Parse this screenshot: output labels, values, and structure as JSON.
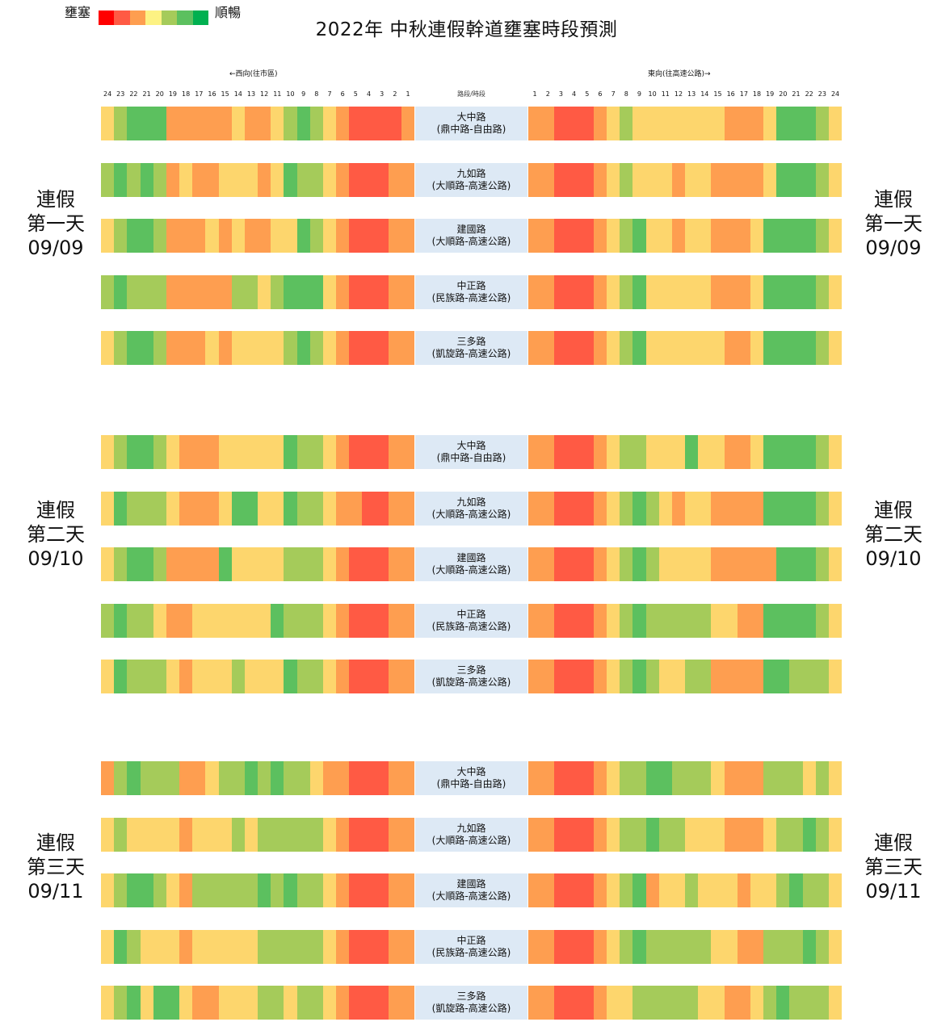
{
  "legend": {
    "left_label": "壅塞",
    "right_label": "順暢",
    "colors": [
      "#ff0000",
      "#ff5a44",
      "#fe9e50",
      "#fdf283",
      "#a5cb5a",
      "#5cc05f",
      "#00b050"
    ]
  },
  "title": "2022年  中秋連假幹道壅塞時段預測",
  "header": {
    "west_label": "←西向(往市區)",
    "east_label": "東向(往高速公路)→",
    "middle_label": "路段/時段",
    "west_hours": [
      "24",
      "23",
      "22",
      "21",
      "20",
      "19",
      "18",
      "17",
      "16",
      "15",
      "14",
      "13",
      "12",
      "11",
      "10",
      "9",
      "8",
      "7",
      "6",
      "5",
      "4",
      "3",
      "2",
      "1"
    ],
    "east_hours": [
      "1",
      "2",
      "3",
      "4",
      "5",
      "6",
      "7",
      "8",
      "9",
      "10",
      "11",
      "12",
      "13",
      "14",
      "15",
      "16",
      "17",
      "18",
      "19",
      "20",
      "21",
      "22",
      "23",
      "24"
    ]
  },
  "chart_data": {
    "type": "heatmap",
    "title": "2022年  中秋連假幹道壅塞時段預測",
    "scale": [
      "壅塞",
      "順暢"
    ],
    "level_note": "1 = 順暢 ... 7 = 壅塞",
    "days": [
      {
        "label_line1": "連假",
        "label_line2": "第一天",
        "date": "09/09",
        "roads": [
          {
            "name": "大中路",
            "section": "(鼎中路-自由路)",
            "west": [
              5,
              4,
              3,
              3,
              3,
              6,
              6,
              6,
              6,
              6,
              5,
              6,
              6,
              5,
              4,
              3,
              4,
              5,
              6,
              7,
              7,
              7,
              7,
              6
            ],
            "east": [
              6,
              6,
              7,
              7,
              7,
              6,
              5,
              4,
              5,
              5,
              5,
              5,
              5,
              5,
              5,
              6,
              6,
              6,
              5,
              3,
              3,
              3,
              4,
              5
            ]
          },
          {
            "name": "九如路",
            "section": "(大順路-高速公路)",
            "west": [
              4,
              3,
              4,
              3,
              4,
              6,
              5,
              6,
              6,
              5,
              5,
              5,
              6,
              5,
              3,
              4,
              4,
              5,
              6,
              7,
              7,
              7,
              6,
              6
            ],
            "east": [
              6,
              6,
              7,
              7,
              7,
              6,
              5,
              4,
              5,
              5,
              5,
              6,
              5,
              5,
              6,
              6,
              6,
              6,
              5,
              3,
              3,
              3,
              4,
              5
            ]
          },
          {
            "name": "建國路",
            "section": "(大順路-高速公路)",
            "west": [
              5,
              4,
              3,
              3,
              4,
              6,
              6,
              6,
              5,
              6,
              5,
              6,
              6,
              5,
              5,
              3,
              4,
              5,
              6,
              7,
              7,
              7,
              6,
              6
            ],
            "east": [
              6,
              6,
              7,
              7,
              7,
              6,
              5,
              4,
              3,
              5,
              5,
              6,
              5,
              5,
              6,
              6,
              6,
              5,
              3,
              3,
              3,
              3,
              4,
              5
            ]
          },
          {
            "name": "中正路",
            "section": "(民族路-高速公路)",
            "west": [
              4,
              3,
              4,
              4,
              4,
              6,
              6,
              6,
              6,
              6,
              4,
              4,
              5,
              4,
              3,
              3,
              3,
              5,
              6,
              7,
              7,
              7,
              6,
              6
            ],
            "east": [
              6,
              6,
              7,
              7,
              7,
              6,
              5,
              4,
              3,
              5,
              5,
              5,
              5,
              5,
              6,
              6,
              6,
              5,
              3,
              3,
              3,
              3,
              4,
              5
            ]
          },
          {
            "name": "三多路",
            "section": "(凱旋路-高速公路)",
            "west": [
              5,
              4,
              3,
              3,
              4,
              6,
              6,
              6,
              5,
              6,
              5,
              5,
              5,
              5,
              4,
              3,
              4,
              5,
              6,
              7,
              7,
              7,
              6,
              6
            ],
            "east": [
              6,
              6,
              7,
              7,
              7,
              6,
              5,
              4,
              3,
              5,
              5,
              5,
              5,
              5,
              5,
              6,
              6,
              5,
              3,
              3,
              3,
              3,
              4,
              5
            ]
          }
        ]
      },
      {
        "label_line1": "連假",
        "label_line2": "第二天",
        "date": "09/10",
        "roads": [
          {
            "name": "大中路",
            "section": "(鼎中路-自由路)",
            "west": [
              5,
              4,
              3,
              3,
              4,
              5,
              6,
              6,
              6,
              5,
              5,
              5,
              5,
              5,
              3,
              4,
              4,
              5,
              6,
              7,
              7,
              7,
              6,
              6
            ],
            "east": [
              6,
              6,
              7,
              7,
              7,
              6,
              5,
              4,
              4,
              5,
              5,
              5,
              3,
              5,
              5,
              6,
              6,
              5,
              3,
              3,
              3,
              3,
              4,
              5
            ]
          },
          {
            "name": "九如路",
            "section": "(大順路-高速公路)",
            "west": [
              5,
              3,
              4,
              4,
              4,
              5,
              6,
              6,
              6,
              5,
              3,
              3,
              5,
              5,
              3,
              4,
              4,
              5,
              6,
              6,
              7,
              7,
              6,
              6
            ],
            "east": [
              6,
              6,
              7,
              7,
              7,
              6,
              5,
              4,
              3,
              4,
              5,
              6,
              5,
              5,
              6,
              6,
              6,
              6,
              3,
              3,
              3,
              3,
              4,
              5
            ]
          },
          {
            "name": "建國路",
            "section": "(大順路-高速公路)",
            "west": [
              5,
              4,
              3,
              3,
              4,
              6,
              6,
              6,
              6,
              3,
              5,
              5,
              5,
              5,
              4,
              4,
              4,
              5,
              6,
              7,
              7,
              7,
              6,
              6
            ],
            "east": [
              6,
              6,
              7,
              7,
              7,
              6,
              5,
              4,
              3,
              4,
              5,
              5,
              5,
              5,
              6,
              6,
              6,
              6,
              6,
              3,
              3,
              3,
              4,
              5
            ]
          },
          {
            "name": "中正路",
            "section": "(民族路-高速公路)",
            "west": [
              4,
              3,
              4,
              4,
              5,
              6,
              6,
              5,
              5,
              5,
              5,
              5,
              5,
              3,
              4,
              4,
              4,
              5,
              6,
              7,
              7,
              7,
              6,
              6
            ],
            "east": [
              6,
              6,
              7,
              7,
              7,
              6,
              5,
              4,
              3,
              4,
              4,
              4,
              4,
              4,
              5,
              5,
              6,
              6,
              3,
              3,
              3,
              3,
              4,
              5
            ]
          },
          {
            "name": "三多路",
            "section": "(凱旋路-高速公路)",
            "west": [
              5,
              3,
              4,
              4,
              4,
              5,
              6,
              5,
              5,
              5,
              4,
              5,
              5,
              5,
              3,
              4,
              4,
              5,
              6,
              7,
              7,
              7,
              6,
              6
            ],
            "east": [
              6,
              6,
              7,
              7,
              7,
              6,
              5,
              4,
              3,
              4,
              5,
              5,
              4,
              4,
              6,
              6,
              6,
              6,
              3,
              3,
              4,
              4,
              4,
              5
            ]
          }
        ]
      },
      {
        "label_line1": "連假",
        "label_line2": "第三天",
        "date": "09/11",
        "roads": [
          {
            "name": "大中路",
            "section": "(鼎中路-自由路)",
            "west": [
              6,
              4,
              3,
              4,
              4,
              4,
              6,
              6,
              5,
              4,
              4,
              3,
              4,
              3,
              4,
              4,
              5,
              6,
              6,
              7,
              7,
              7,
              6,
              6
            ],
            "east": [
              6,
              6,
              7,
              7,
              7,
              6,
              5,
              4,
              4,
              3,
              3,
              4,
              4,
              4,
              5,
              6,
              6,
              6,
              4,
              4,
              4,
              5,
              4,
              5
            ]
          },
          {
            "name": "九如路",
            "section": "(大順路-高速公路)",
            "west": [
              5,
              4,
              5,
              5,
              5,
              5,
              6,
              5,
              5,
              5,
              4,
              5,
              4,
              4,
              4,
              4,
              4,
              5,
              6,
              7,
              7,
              7,
              6,
              6
            ],
            "east": [
              6,
              6,
              7,
              7,
              7,
              6,
              5,
              4,
              4,
              3,
              4,
              4,
              5,
              5,
              5,
              6,
              6,
              6,
              5,
              4,
              4,
              3,
              4,
              5
            ]
          },
          {
            "name": "建國路",
            "section": "(大順路-高速公路)",
            "west": [
              5,
              4,
              3,
              3,
              4,
              5,
              6,
              4,
              4,
              4,
              4,
              4,
              3,
              4,
              3,
              4,
              4,
              5,
              6,
              7,
              7,
              7,
              6,
              6
            ],
            "east": [
              6,
              6,
              7,
              7,
              7,
              6,
              5,
              4,
              3,
              6,
              5,
              5,
              4,
              5,
              5,
              5,
              6,
              5,
              5,
              4,
              3,
              4,
              4,
              5
            ]
          },
          {
            "name": "中正路",
            "section": "(民族路-高速公路)",
            "west": [
              5,
              3,
              4,
              5,
              5,
              5,
              6,
              5,
              5,
              5,
              5,
              5,
              4,
              4,
              4,
              4,
              4,
              5,
              6,
              7,
              7,
              7,
              6,
              6
            ],
            "east": [
              6,
              6,
              7,
              7,
              7,
              6,
              5,
              4,
              3,
              4,
              4,
              4,
              4,
              4,
              5,
              5,
              6,
              6,
              4,
              4,
              4,
              3,
              4,
              5
            ]
          },
          {
            "name": "三多路",
            "section": "(凱旋路-高速公路)",
            "west": [
              5,
              4,
              3,
              5,
              3,
              3,
              5,
              6,
              6,
              5,
              5,
              5,
              4,
              4,
              5,
              4,
              4,
              5,
              6,
              7,
              7,
              7,
              6,
              6
            ],
            "east": [
              6,
              6,
              7,
              7,
              7,
              6,
              5,
              5,
              4,
              4,
              4,
              4,
              4,
              5,
              5,
              6,
              6,
              5,
              4,
              3,
              4,
              4,
              4,
              5
            ]
          }
        ]
      }
    ]
  }
}
